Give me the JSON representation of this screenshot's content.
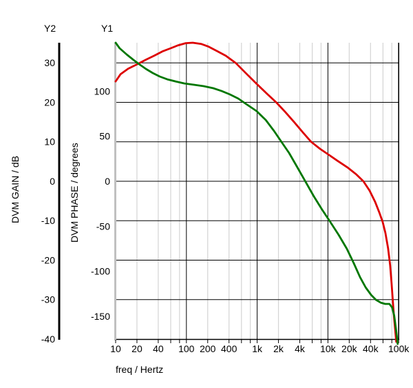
{
  "header": {
    "y2_label": "Y2",
    "y1_label": "Y1"
  },
  "axes": {
    "y2": {
      "title": "DVM GAIN / dB",
      "ticks": [
        30,
        20,
        10,
        0,
        -10,
        -20,
        -30,
        -40
      ],
      "range": [
        -40.0,
        35.1
      ],
      "gridlines": [
        30,
        20,
        10,
        0,
        -10,
        -20,
        -30
      ],
      "axis_color": "#000000"
    },
    "y1": {
      "title": "DVM PHASE / degrees",
      "ticks": [
        100,
        50,
        0,
        -50,
        -100,
        -150
      ],
      "range": [
        -175.2,
        153.8
      ],
      "axis_color": "#c0c0c0"
    },
    "x": {
      "title": "freq / Hertz",
      "scale": "log",
      "range": [
        10,
        100000
      ],
      "tick_labels": [
        "10",
        "20",
        "40",
        "100",
        "200",
        "400",
        "1k",
        "2k",
        "4k",
        "10k",
        "20k",
        "40k",
        "100k"
      ],
      "tick_values": [
        10,
        20,
        40,
        100,
        200,
        400,
        1000,
        2000,
        4000,
        10000,
        20000,
        40000,
        100000
      ],
      "major_gridlines": [
        100,
        1000,
        10000,
        100000
      ],
      "minor_gridlines": [
        20,
        40,
        60,
        80,
        200,
        400,
        600,
        800,
        2000,
        4000,
        6000,
        8000,
        20000,
        40000,
        60000,
        80000
      ]
    }
  },
  "colors": {
    "background": "#ffffff",
    "major_grid": "#000000",
    "minor_grid": "#d4d4d4",
    "gain_curve": "#dd0000",
    "phase_curve": "#007700",
    "y1_axis": "#c0c0c0",
    "y2_axis": "#000000",
    "text": "#000000"
  },
  "chart_data": {
    "type": "line",
    "title": "",
    "xlabel": "freq / Hertz",
    "x_scale": "log",
    "xlim": [
      10,
      100000
    ],
    "grid": true,
    "legend_position": "none",
    "series": [
      {
        "name": "DVM GAIN",
        "axis": "y2",
        "unit": "dB",
        "color": "#dd0000",
        "points": [
          [
            10,
            25.3
          ],
          [
            11.7,
            27.1
          ],
          [
            15,
            28.5
          ],
          [
            20.5,
            29.7
          ],
          [
            26.8,
            30.8
          ],
          [
            35,
            31.8
          ],
          [
            45.9,
            32.9
          ],
          [
            60,
            33.7
          ],
          [
            75,
            34.4
          ],
          [
            98,
            35.0
          ],
          [
            123,
            35.1
          ],
          [
            161,
            34.8
          ],
          [
            206,
            34.1
          ],
          [
            270,
            33.0
          ],
          [
            360,
            31.8
          ],
          [
            503,
            29.9
          ],
          [
            700,
            27.3
          ],
          [
            980,
            24.7
          ],
          [
            1370,
            22.2
          ],
          [
            1880,
            19.9
          ],
          [
            2510,
            17.5
          ],
          [
            3370,
            14.9
          ],
          [
            4420,
            12.4
          ],
          [
            5780,
            10.0
          ],
          [
            7740,
            8.2
          ],
          [
            10100,
            6.8
          ],
          [
            13600,
            5.2
          ],
          [
            18900,
            3.5
          ],
          [
            25300,
            1.7
          ],
          [
            31700,
            0.0
          ],
          [
            38900,
            -2.4
          ],
          [
            46400,
            -5.2
          ],
          [
            53200,
            -7.9
          ],
          [
            59400,
            -10.3
          ],
          [
            64900,
            -13.1
          ],
          [
            70900,
            -17.0
          ],
          [
            75800,
            -21.3
          ],
          [
            79200,
            -25.7
          ],
          [
            82800,
            -30.6
          ],
          [
            86500,
            -35.0
          ],
          [
            90400,
            -38.8
          ],
          [
            92400,
            -40.7
          ]
        ]
      },
      {
        "name": "DVM PHASE",
        "axis": "y1",
        "unit": "degrees",
        "color": "#007700",
        "points": [
          [
            10,
            153.8
          ],
          [
            11.4,
            147.7
          ],
          [
            14.3,
            140.8
          ],
          [
            17.9,
            134.7
          ],
          [
            21.4,
            130.1
          ],
          [
            26.8,
            124.7
          ],
          [
            33.5,
            120.1
          ],
          [
            41.9,
            116.3
          ],
          [
            53.6,
            113.2
          ],
          [
            70,
            110.9
          ],
          [
            94,
            108.6
          ],
          [
            128,
            107.1
          ],
          [
            175,
            105.6
          ],
          [
            240,
            103.3
          ],
          [
            315,
            100.2
          ],
          [
            412,
            96.4
          ],
          [
            540,
            91.8
          ],
          [
            700,
            85.7
          ],
          [
            980,
            78.0
          ],
          [
            1320,
            68.1
          ],
          [
            1730,
            55.9
          ],
          [
            2210,
            43.6
          ],
          [
            2830,
            31.4
          ],
          [
            3710,
            15.3
          ],
          [
            4850,
            -0.8
          ],
          [
            6330,
            -16.8
          ],
          [
            8270,
            -31.4
          ],
          [
            10800,
            -45.1
          ],
          [
            14200,
            -59.7
          ],
          [
            18500,
            -75.0
          ],
          [
            23200,
            -91.0
          ],
          [
            28400,
            -106.4
          ],
          [
            34100,
            -117.8
          ],
          [
            40800,
            -126.2
          ],
          [
            47600,
            -131.6
          ],
          [
            55600,
            -134.7
          ],
          [
            64300,
            -136.2
          ],
          [
            73900,
            -136.2
          ],
          [
            80600,
            -140.0
          ],
          [
            86500,
            -149.2
          ],
          [
            90400,
            -160.7
          ],
          [
            94600,
            -172.9
          ],
          [
            96700,
            -180.6
          ]
        ]
      }
    ]
  }
}
